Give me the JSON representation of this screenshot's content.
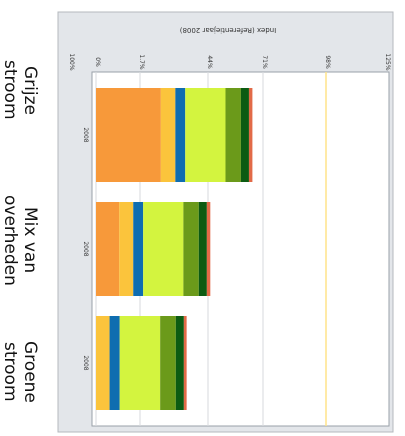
{
  "chart_data": {
    "type": "bar",
    "orientation": "horizontal-rotated",
    "stacked": true,
    "title": "Index (Referentiejaar 2008)",
    "ticks": [
      "100%",
      "0%",
      "1.7%",
      "44%",
      "71%",
      "98%",
      "125%"
    ],
    "bar_tick_labels": [
      "2008",
      "2008",
      "2008"
    ],
    "categories": [
      "Grijze\nstroom",
      "Mix van\noverheden",
      "Groene\nstroom"
    ],
    "series": [
      {
        "color": "#f7993a",
        "values": [
          28.2,
          10.1,
          0.0
        ]
      },
      {
        "color": "#fbc43c",
        "values": [
          6.3,
          6.1,
          5.9
        ]
      },
      {
        "color": "#0f6db0",
        "values": [
          4.3,
          4.3,
          4.4
        ]
      },
      {
        "color": "#d3f43f",
        "values": [
          17.5,
          17.5,
          17.6
        ]
      },
      {
        "color": "#6b9a1a",
        "values": [
          6.7,
          6.7,
          6.8
        ]
      },
      {
        "color": "#0c5b12",
        "values": [
          3.5,
          3.5,
          3.5
        ]
      },
      {
        "color": "#e26a47",
        "values": [
          1.5,
          1.5,
          1.2
        ]
      }
    ]
  }
}
